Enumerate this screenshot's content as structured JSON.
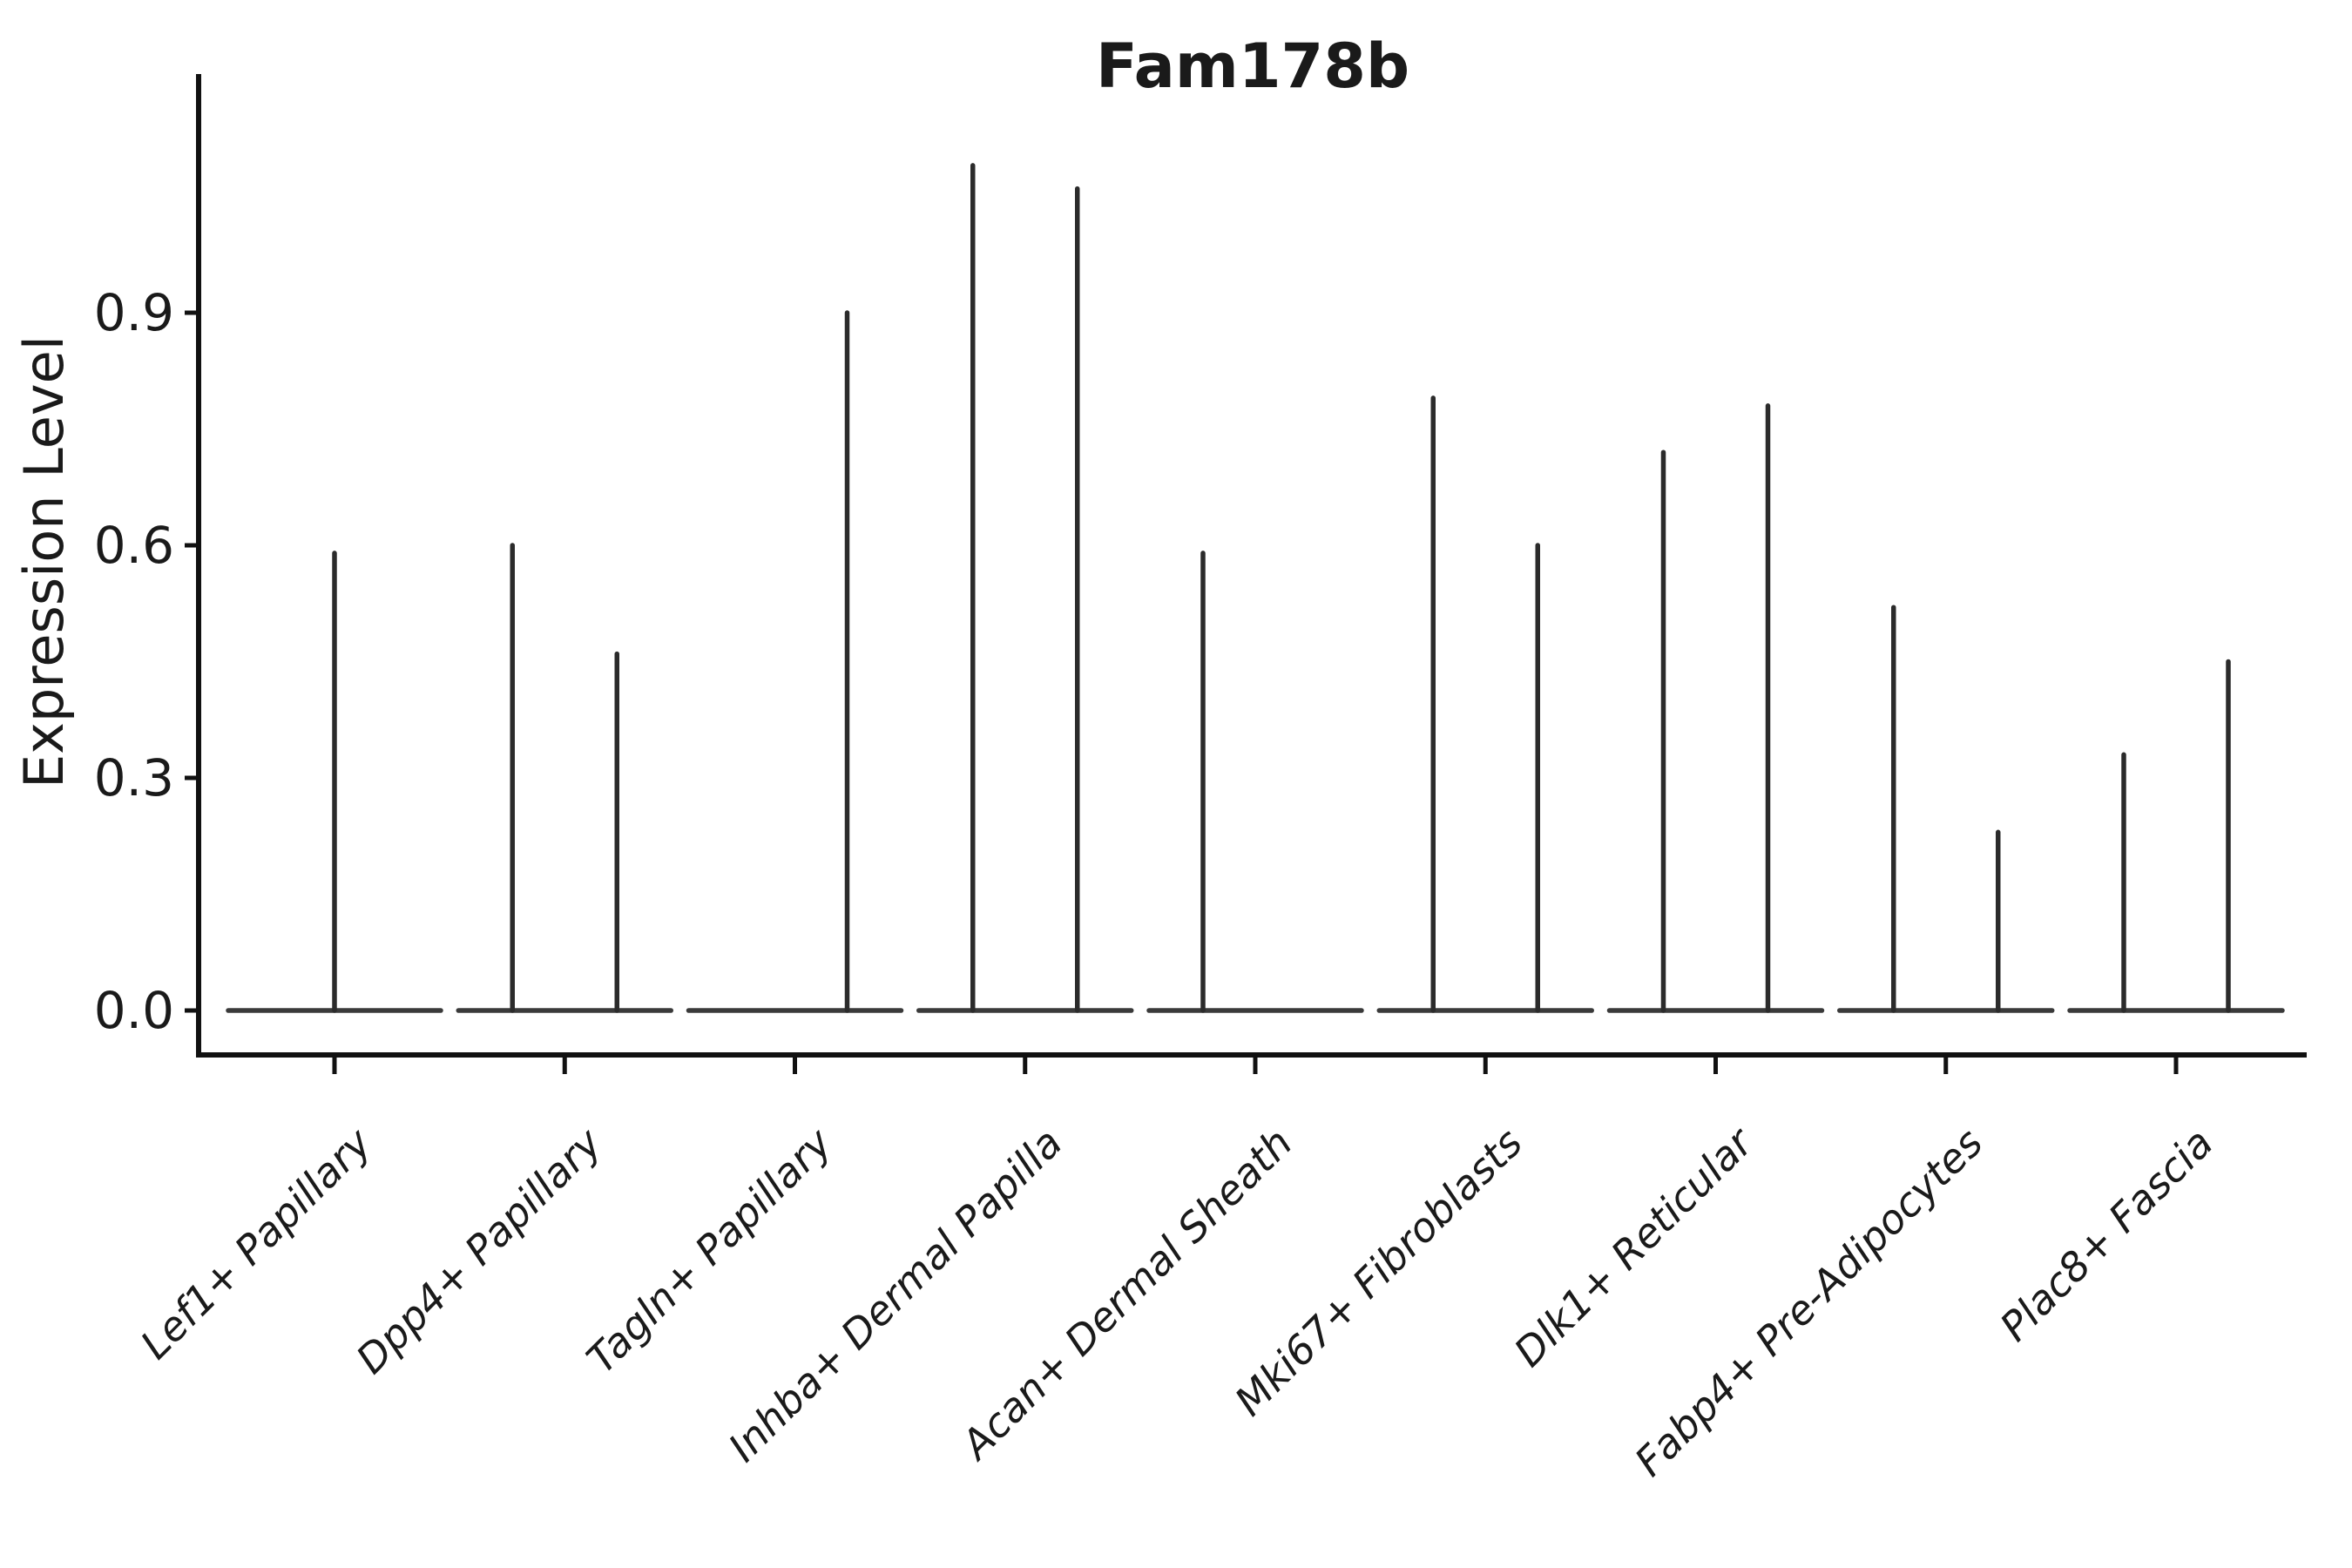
{
  "chart_data": {
    "type": "violin",
    "title": "Fam178b",
    "xlabel": "",
    "ylabel": "Expression Level",
    "ytick_labels": [
      "0.0",
      "0.3",
      "0.6",
      "0.9"
    ],
    "ytick_values": [
      0.0,
      0.3,
      0.6,
      0.9
    ],
    "ylim": [
      -0.06,
      1.21
    ],
    "grid": false,
    "legend": "none",
    "categories": [
      "Lef1+ Papillary",
      "Dpp4+ Papillary",
      "Tagln+ Papillary",
      "Inhba+ Dermal Papilla",
      "Acan+ Dermal Sheath",
      "Mki67+ Fibroblasts",
      "Dlk1+ Reticular",
      "Fabp4+ Pre-Adipocytes",
      "Plac8+ Fascia"
    ],
    "violins": [
      {
        "category": "Lef1+ Papillary",
        "baseline_value": 0.0,
        "spikes": [
          {
            "slot": "center",
            "max": 0.59
          }
        ]
      },
      {
        "category": "Dpp4+ Papillary",
        "baseline_value": 0.0,
        "spikes": [
          {
            "slot": "left",
            "max": 0.6
          },
          {
            "slot": "right",
            "max": 0.46
          }
        ]
      },
      {
        "category": "Tagln+ Papillary",
        "baseline_value": 0.0,
        "spikes": [
          {
            "slot": "right",
            "max": 0.9
          }
        ]
      },
      {
        "category": "Inhba+ Dermal Papilla",
        "baseline_value": 0.0,
        "spikes": [
          {
            "slot": "left",
            "max": 1.09
          },
          {
            "slot": "right",
            "max": 1.06
          }
        ]
      },
      {
        "category": "Acan+ Dermal Sheath",
        "baseline_value": 0.0,
        "spikes": [
          {
            "slot": "left",
            "max": 0.59
          }
        ]
      },
      {
        "category": "Mki67+ Fibroblasts",
        "baseline_value": 0.0,
        "spikes": [
          {
            "slot": "left",
            "max": 0.79
          },
          {
            "slot": "right",
            "max": 0.6
          }
        ]
      },
      {
        "category": "Dlk1+ Reticular",
        "baseline_value": 0.0,
        "spikes": [
          {
            "slot": "left",
            "max": 0.72
          },
          {
            "slot": "right",
            "max": 0.78
          }
        ]
      },
      {
        "category": "Fabp4+ Pre-Adipocytes",
        "baseline_value": 0.0,
        "spikes": [
          {
            "slot": "left",
            "max": 0.52
          },
          {
            "slot": "right",
            "max": 0.23
          }
        ]
      },
      {
        "category": "Plac8+ Fascia",
        "baseline_value": 0.0,
        "spikes": [
          {
            "slot": "left",
            "max": 0.33
          },
          {
            "slot": "right",
            "max": 0.45
          }
        ]
      }
    ],
    "colors": {
      "line": "#2b2b2b",
      "baseline": "#3a3a3a",
      "axis": "#111111",
      "text": "#1a1a1a",
      "background": "#ffffff"
    }
  }
}
